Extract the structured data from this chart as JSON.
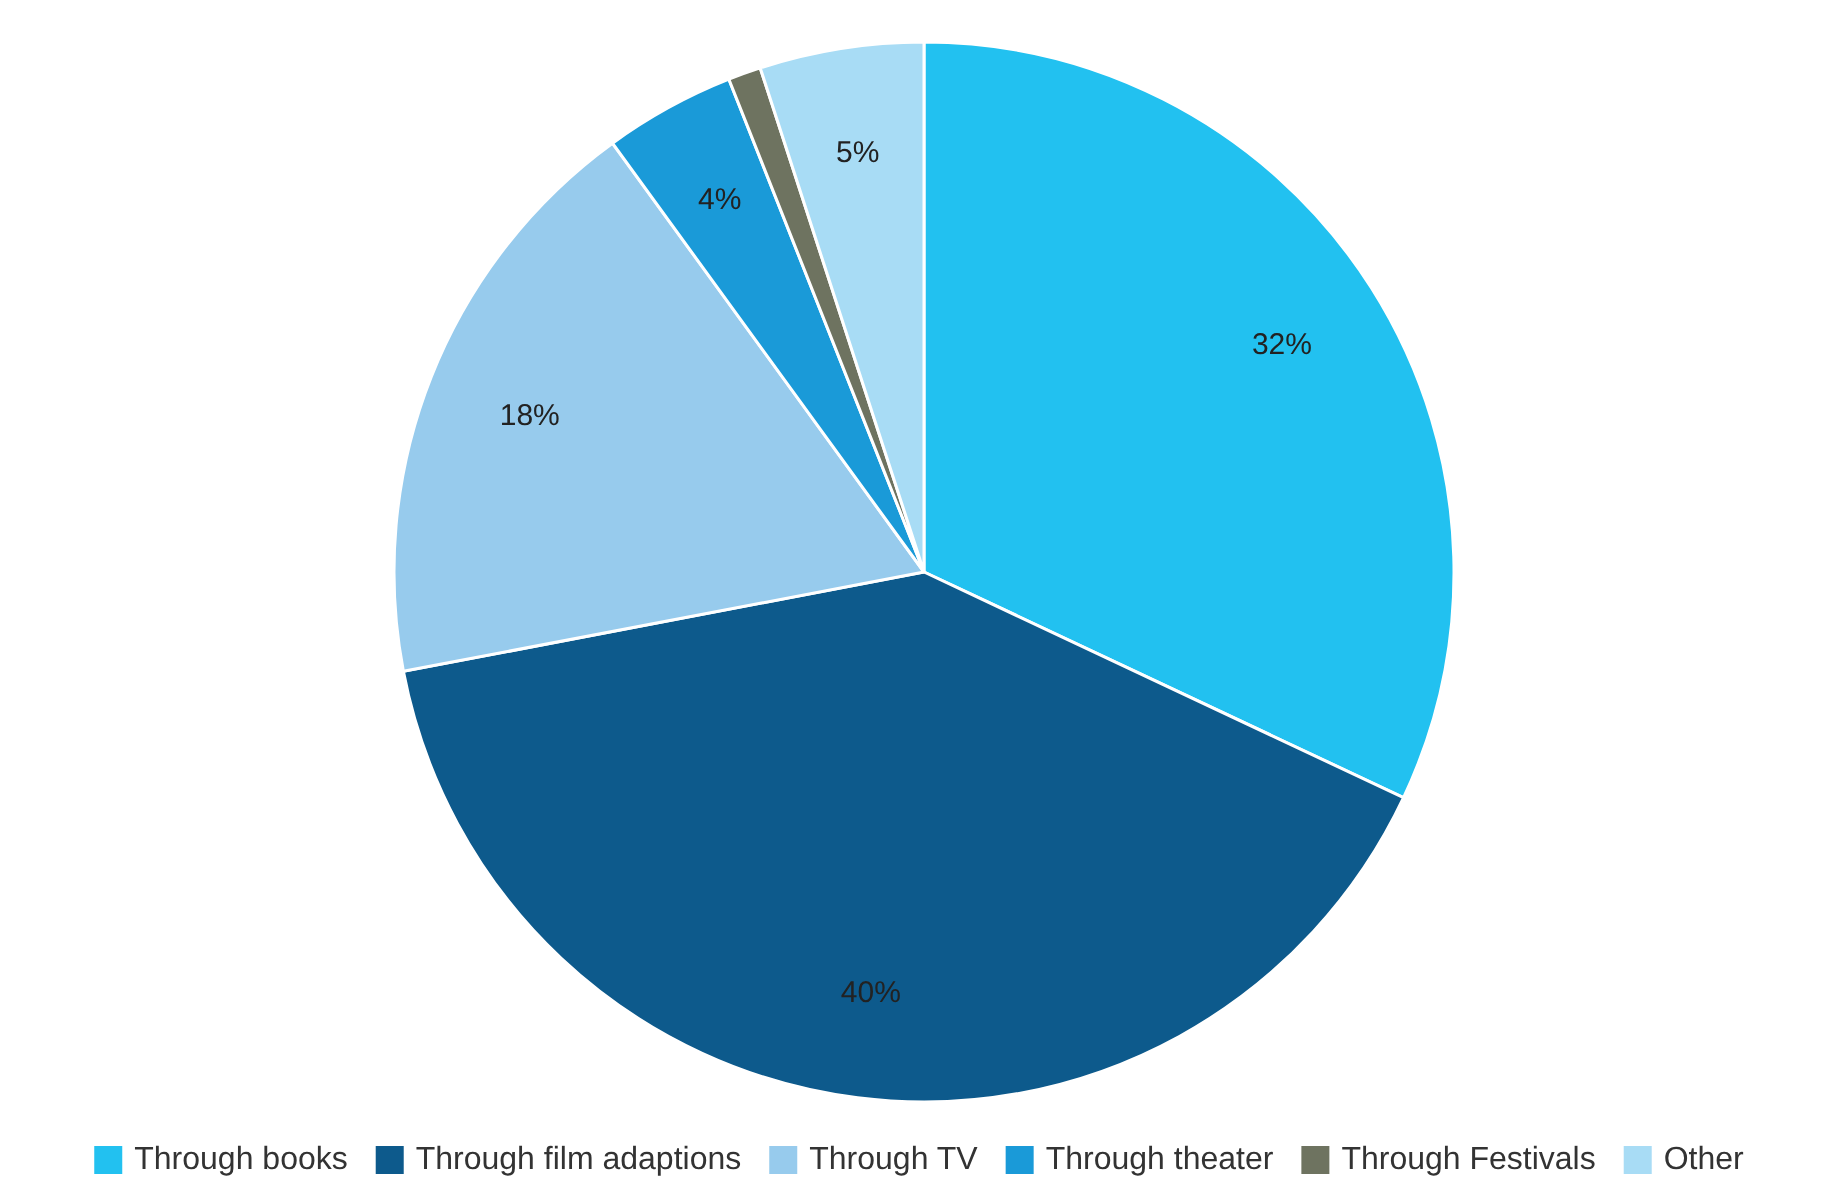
{
  "chart_data": {
    "type": "pie",
    "categories": [
      "Through books",
      "Through film adaptions",
      "Through TV",
      "Through theater",
      "Through Festivals",
      "Other"
    ],
    "values": [
      32,
      40,
      18,
      4,
      1,
      5
    ],
    "colors": [
      "#22c1f0",
      "#0d5a8c",
      "#97cbed",
      "#1a9ad8",
      "#6e7360",
      "#a8dcf5"
    ],
    "value_labels": [
      "32%",
      "40%",
      "18%",
      "4%",
      null,
      "5%"
    ],
    "legend": "bottom"
  }
}
